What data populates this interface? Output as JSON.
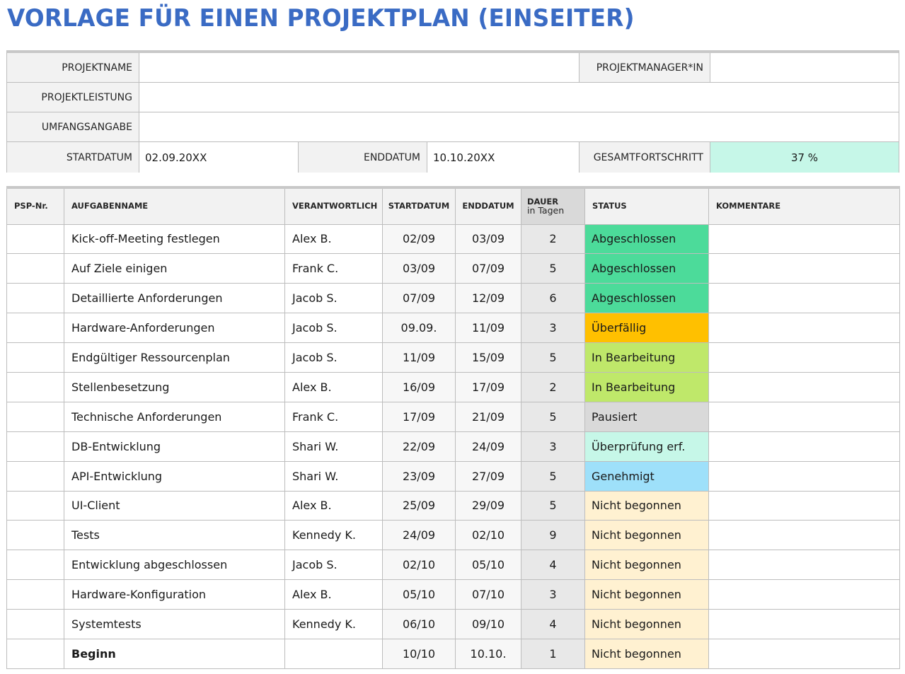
{
  "title": "VORLAGE FÜR EINEN PROJEKTPLAN (EINSEITER)",
  "info": {
    "projektname_label": "PROJEKTNAME",
    "projektname_value": "",
    "manager_label": "PROJEKTMANAGER*IN",
    "manager_value": "",
    "leistung_label": "PROJEKTLEISTUNG",
    "leistung_value": "",
    "umfang_label": "UMFANGSANGABE",
    "umfang_value": "",
    "start_label": "STARTDATUM",
    "start_value": "02.09.20XX",
    "end_label": "ENDDATUM",
    "end_value": "10.10.20XX",
    "fortschritt_label": "GESAMTFORTSCHRITT",
    "fortschritt_value": "37 %",
    "fortschritt_color": "#c6f7e8"
  },
  "table": {
    "headers": {
      "psp": "PSP-Nr.",
      "aufgabe": "AUFGABENNAME",
      "verantwortlich": "VERANTWORTLICH",
      "start": "STARTDATUM",
      "end": "ENDDATUM",
      "dauer": "DAUER",
      "dauer_sub": "in Tagen",
      "status": "STATUS",
      "kommentare": "KOMMENTARE"
    },
    "rows": [
      {
        "psp": "",
        "task": "Kick-off-Meeting festlegen",
        "owner": "Alex B.",
        "start": "02/09",
        "end": "03/09",
        "dur": "2",
        "status": "Abgeschlossen",
        "status_color": "#4cdb9a",
        "comment": ""
      },
      {
        "psp": "",
        "task": "Auf Ziele einigen",
        "owner": "Frank C.",
        "start": "03/09",
        "end": "07/09",
        "dur": "5",
        "status": "Abgeschlossen",
        "status_color": "#4cdb9a",
        "comment": ""
      },
      {
        "psp": "",
        "task": "Detaillierte Anforderungen",
        "owner": "Jacob S.",
        "start": "07/09",
        "end": "12/09",
        "dur": "6",
        "status": "Abgeschlossen",
        "status_color": "#4cdb9a",
        "comment": ""
      },
      {
        "psp": "",
        "task": "Hardware-Anforderungen",
        "owner": "Jacob S.",
        "start": "09.09.",
        "end": "11/09",
        "dur": "3",
        "status": "Überfällig",
        "status_color": "#ffc000",
        "comment": ""
      },
      {
        "psp": "",
        "task": "Endgültiger Ressourcenplan",
        "owner": "Jacob S.",
        "start": "11/09",
        "end": "15/09",
        "dur": "5",
        "status": "In Bearbeitung",
        "status_color": "#bfe86a",
        "comment": ""
      },
      {
        "psp": "",
        "task": "Stellenbesetzung",
        "owner": "Alex B.",
        "start": "16/09",
        "end": "17/09",
        "dur": "2",
        "status": "In Bearbeitung",
        "status_color": "#bfe86a",
        "comment": ""
      },
      {
        "psp": "",
        "task": "Technische Anforderungen",
        "owner": "Frank C.",
        "start": "17/09",
        "end": "21/09",
        "dur": "5",
        "status": "Pausiert",
        "status_color": "#d9d9d9",
        "comment": ""
      },
      {
        "psp": "",
        "task": "DB-Entwicklung",
        "owner": "Shari W.",
        "start": "22/09",
        "end": "24/09",
        "dur": "3",
        "status": "Überprüfung erf.",
        "status_color": "#c6f7e8",
        "comment": ""
      },
      {
        "psp": "",
        "task": "API-Entwicklung",
        "owner": "Shari W.",
        "start": "23/09",
        "end": "27/09",
        "dur": "5",
        "status": "Genehmigt",
        "status_color": "#9ee0fa",
        "comment": ""
      },
      {
        "psp": "",
        "task": "UI-Client",
        "owner": "Alex B.",
        "start": "25/09",
        "end": "29/09",
        "dur": "5",
        "status": "Nicht begonnen",
        "status_color": "#fff1d1",
        "comment": ""
      },
      {
        "psp": "",
        "task": "Tests",
        "owner": "Kennedy K.",
        "start": "24/09",
        "end": "02/10",
        "dur": "9",
        "status": "Nicht begonnen",
        "status_color": "#fff1d1",
        "comment": ""
      },
      {
        "psp": "",
        "task": "Entwicklung abgeschlossen",
        "owner": "Jacob S.",
        "start": "02/10",
        "end": "05/10",
        "dur": "4",
        "status": "Nicht begonnen",
        "status_color": "#fff1d1",
        "comment": ""
      },
      {
        "psp": "",
        "task": "Hardware-Konfiguration",
        "owner": "Alex B.",
        "start": "05/10",
        "end": "07/10",
        "dur": "3",
        "status": "Nicht begonnen",
        "status_color": "#fff1d1",
        "comment": ""
      },
      {
        "psp": "",
        "task": "Systemtests",
        "owner": "Kennedy K.",
        "start": "06/10",
        "end": "09/10",
        "dur": "4",
        "status": "Nicht begonnen",
        "status_color": "#fff1d1",
        "comment": ""
      },
      {
        "psp": "",
        "task": "Beginn",
        "owner": "",
        "start": "10/10",
        "end": "10.10.",
        "dur": "1",
        "status": "Nicht begonnen",
        "status_color": "#fff1d1",
        "comment": "",
        "bold": true
      }
    ]
  }
}
